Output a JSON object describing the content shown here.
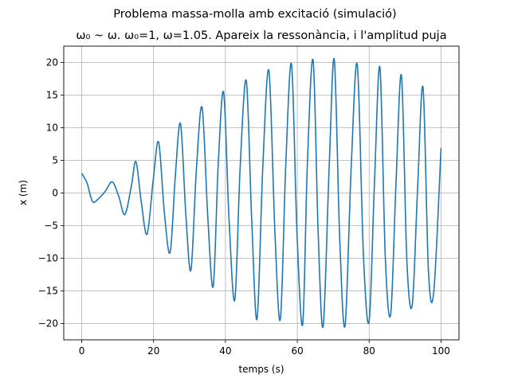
{
  "chart_data": {
    "type": "line",
    "suptitle": "Problema massa-molla amb excitació (simulació)",
    "title": "ω₀ ~ ω. ω₀=1, ω=1.05.  Apareix la ressonància, i l'amplitud puja",
    "xlabel": "temps (s)",
    "ylabel": "x (m)",
    "xlim": [
      -5,
      105
    ],
    "ylim": [
      -22.5,
      22.5
    ],
    "xticks": [
      0,
      20,
      40,
      60,
      80,
      100
    ],
    "yticks": [
      -20,
      -15,
      -10,
      -5,
      0,
      5,
      10,
      15,
      20
    ],
    "xtick_labels": [
      "0",
      "20",
      "40",
      "60",
      "80",
      "100"
    ],
    "ytick_labels": [
      "−20",
      "−15",
      "−10",
      "−5",
      "0",
      "5",
      "10",
      "15",
      "20"
    ],
    "grid": true,
    "line_color": "#1f77b4",
    "series": [
      {
        "x": [
          0,
          1.5,
          3,
          4.8,
          6.6,
          8.5,
          10.3,
          12.0,
          13.8,
          15.1,
          16.6,
          18.2,
          19.9,
          21.4,
          23.0,
          24.6,
          26.1,
          27.5,
          29.0,
          30.4,
          31.9,
          33.5,
          35.1,
          36.6,
          38.0,
          39.5,
          41.0,
          42.6,
          44.1,
          45.8,
          47.3,
          48.8,
          50.4,
          52.1,
          53.8,
          55.3,
          56.8,
          58.4,
          59.9,
          61.5,
          62.8,
          64.4,
          65.8,
          67.2,
          68.9,
          70.3,
          71.8,
          73.3,
          75.0,
          76.7,
          78.4,
          80.0,
          81.5,
          83.0,
          84.5,
          86.0,
          87.5,
          89.0,
          90.5,
          92.0,
          93.5,
          95.0,
          96.5,
          98.0,
          100.0
        ],
        "y": [
          3.0,
          1.5,
          -1.3,
          -0.8,
          0.3,
          1.7,
          -0.5,
          -3.3,
          1.0,
          4.8,
          -1.5,
          -6.3,
          2.0,
          7.8,
          -3.0,
          -9.1,
          3.0,
          10.6,
          -3.5,
          -11.8,
          3.5,
          13.1,
          -3.8,
          -14.3,
          4.5,
          15.4,
          -4.0,
          -16.4,
          4.0,
          17.2,
          -4.0,
          -19.3,
          4.0,
          18.7,
          -6.5,
          -19.3,
          4.5,
          19.7,
          -6.0,
          -20.1,
          4.5,
          20.3,
          -6.0,
          -20.4,
          4.5,
          20.4,
          -7.0,
          -20.3,
          4.0,
          19.6,
          -9.5,
          -19.6,
          2.0,
          19.2,
          -10.0,
          -18.5,
          2.0,
          17.9,
          -10.5,
          -17.1,
          1.0,
          16.1,
          -12.0,
          -15.0,
          6.9
        ]
      }
    ]
  }
}
